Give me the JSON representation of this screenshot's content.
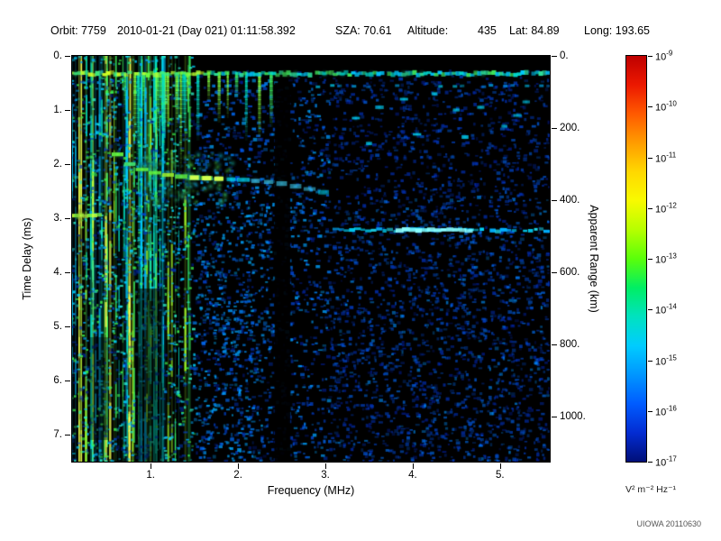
{
  "header": {
    "orbit": "Orbit: 7759",
    "datetime": "2010-01-21 (Day 021) 01:11:58.392",
    "sza": "SZA: 70.61",
    "altitude_label": "Altitude:",
    "altitude_value": "435",
    "lat": "Lat: 84.89",
    "long": "Long: 193.65"
  },
  "footer": {
    "credit": "UIOWA 20110630"
  },
  "chart_data": {
    "type": "heatmap",
    "title": "",
    "xlabel": "Frequency (MHz)",
    "ylabel_left": "Time Delay (ms)",
    "ylabel_right": "Apparent Range (km)",
    "xlim": [
      0.1,
      5.57
    ],
    "ylim_ms": [
      0,
      7.5
    ],
    "ylim_km": [
      0,
      1125
    ],
    "background": "#000000",
    "x_ticks": [
      {
        "v": 1,
        "label": "1."
      },
      {
        "v": 2,
        "label": "2."
      },
      {
        "v": 3,
        "label": "3."
      },
      {
        "v": 4,
        "label": "4."
      },
      {
        "v": 5,
        "label": "5."
      }
    ],
    "y_ticks_ms": [
      {
        "v": 0,
        "label": "0."
      },
      {
        "v": 1,
        "label": "1."
      },
      {
        "v": 2,
        "label": "2."
      },
      {
        "v": 3,
        "label": "3."
      },
      {
        "v": 4,
        "label": "4."
      },
      {
        "v": 5,
        "label": "5."
      },
      {
        "v": 6,
        "label": "6."
      },
      {
        "v": 7,
        "label": "7."
      }
    ],
    "y_ticks_km": [
      {
        "v": 0,
        "label": "0."
      },
      {
        "v": 200,
        "label": "200."
      },
      {
        "v": 400,
        "label": "400."
      },
      {
        "v": 600,
        "label": "600."
      },
      {
        "v": 800,
        "label": "800."
      },
      {
        "v": 1000,
        "label": "1000."
      }
    ],
    "colorbar": {
      "unit_label": "V² m⁻² Hz⁻¹",
      "tick_base": "10",
      "tick_exponents": [
        "-9",
        "-10",
        "-11",
        "-12",
        "-13",
        "-14",
        "-15",
        "-16",
        "-17"
      ],
      "gradient": [
        "#be0000",
        "#ec1800",
        "#ff5a00",
        "#ff9c00",
        "#ffd800",
        "#f8fa00",
        "#b6ff00",
        "#5aff0a",
        "#00ee64",
        "#00e2c0",
        "#00ccff",
        "#0096ff",
        "#005cff",
        "#032cd2",
        "#000f78"
      ]
    },
    "render": {
      "seed": 7759,
      "noise_regions": [
        {
          "f": [
            0.1,
            5.57
          ],
          "t": [
            0.28,
            7.5
          ],
          "count": 2100,
          "colors": [
            "#001e96",
            "#0031b9",
            "#0044d8"
          ],
          "alpha": [
            0.25,
            0.75
          ],
          "size": [
            2,
            5
          ]
        },
        {
          "f": [
            1.5,
            3.05
          ],
          "t": [
            0.45,
            7.5
          ],
          "count": 950,
          "colors": [
            "#0046d8",
            "#0066ee",
            "#0085ff",
            "#00a2ff"
          ],
          "alpha": [
            0.3,
            0.85
          ],
          "size": [
            2,
            5
          ]
        },
        {
          "f": [
            3.05,
            5.57
          ],
          "t": [
            0.45,
            7.5
          ],
          "count": 1150,
          "colors": [
            "#0030b8",
            "#004ad8",
            "#0062ee"
          ],
          "alpha": [
            0.25,
            0.7
          ],
          "size": [
            2,
            5
          ]
        },
        {
          "f": [
            0.1,
            1.5
          ],
          "t": [
            0.0,
            7.5
          ],
          "count": 1400,
          "colors": [
            "#00a8ff",
            "#00d0ff",
            "#2ae8c4",
            "#3cf04c"
          ],
          "alpha": [
            0.3,
            0.9
          ],
          "size": [
            2,
            4
          ]
        },
        {
          "f": [
            3.1,
            5.57
          ],
          "t": [
            2.6,
            7.5
          ],
          "count": 520,
          "colors": [
            "#0054e2",
            "#0072f8",
            "#0092ff"
          ],
          "alpha": [
            0.25,
            0.65
          ],
          "size": [
            2,
            5
          ]
        },
        {
          "f": [
            1.5,
            2.4
          ],
          "t": [
            2.2,
            7.5
          ],
          "count": 300,
          "colors": [
            "#0066ee",
            "#0090ff",
            "#00b4ff"
          ],
          "alpha": [
            0.3,
            0.8
          ],
          "size": [
            2,
            4
          ]
        }
      ],
      "stripes": {
        "f": [
          0.1,
          1.45
        ],
        "count": 58,
        "colors": [
          "#00c8ff",
          "#00e8cc",
          "#3cf060",
          "#9cf028"
        ],
        "bright_f": [
          0.1,
          0.8
        ],
        "bright_count": 7,
        "bright_colors": [
          "#c8ff3c",
          "#f0ff50"
        ]
      },
      "dark_patches": [
        {
          "f": [
            0.82,
            1.14
          ],
          "t": [
            4.3,
            7.5
          ],
          "alpha": 0.55
        },
        {
          "f": [
            0.3,
            0.52
          ],
          "t": [
            5.2,
            7.1
          ],
          "alpha": 0.4
        }
      ],
      "black_column": {
        "f": [
          2.42,
          2.6
        ],
        "t": [
          0.5,
          7.5
        ],
        "alpha": 0.93
      },
      "surface_line": {
        "t": 0.33,
        "gap_prob": 0.05,
        "split_f": 1.7,
        "left_colors": [
          "#b8ff30",
          "#74ff40",
          "#d2ff24",
          "#40f080"
        ],
        "right_colors": [
          "#30e8a0",
          "#00dcd2",
          "#44f060",
          "#00c8ff"
        ]
      },
      "sub_line": {
        "t": 0.56,
        "f": [
          2.75,
          5.57
        ],
        "colors": [
          "#00b4ff",
          "#00d8ff",
          "#0092ff"
        ]
      },
      "hanging_spikes": {
        "f": [
          0.7,
          2.35
        ],
        "count": 15,
        "t_top": 0.35,
        "len_ms": [
          0.35,
          1.4
        ],
        "colors": [
          "#3cf060",
          "#00e0c0",
          "#84ff40"
        ],
        "cluster_f": [
          0.85,
          1.4
        ],
        "cluster_count": 9,
        "cluster_len_ms": [
          0.9,
          2.0
        ]
      },
      "iono_trace": {
        "points": [
          [
            0.62,
            1.82
          ],
          [
            0.76,
            2.0
          ],
          [
            0.9,
            2.1
          ],
          [
            1.05,
            2.16
          ],
          [
            1.2,
            2.2
          ],
          [
            1.35,
            2.23
          ],
          [
            1.5,
            2.25
          ],
          [
            1.64,
            2.26
          ],
          [
            1.78,
            2.27
          ],
          [
            1.92,
            2.28
          ],
          [
            2.06,
            2.29
          ],
          [
            2.2,
            2.31
          ],
          [
            2.35,
            2.33
          ],
          [
            2.5,
            2.36
          ],
          [
            2.66,
            2.41
          ],
          [
            2.82,
            2.46
          ],
          [
            2.98,
            2.52
          ]
        ],
        "head_colors": [
          "#66ff44",
          "#a8ff33",
          "#44f078"
        ],
        "tail_colors": [
          "#00e4ff",
          "#40d8ff"
        ],
        "knot_color": "#d8ff50"
      },
      "iono_cloud": {
        "f": [
          0.85,
          1.95
        ],
        "t": [
          1.8,
          2.75
        ],
        "count": 150,
        "colors": [
          "#00c8ff",
          "#30e8a0",
          "#50f050"
        ]
      },
      "second_echo": {
        "t": 3.22,
        "f": [
          3.12,
          5.57
        ],
        "colors": [
          "#00d8ff",
          "#20e8ff",
          "#00b0ff"
        ],
        "bright_color": "#8cffff",
        "bright_f": [
          3.85,
          4.7
        ],
        "lead_f": 2.95
      },
      "left_dash": {
        "t": 2.95,
        "f": [
          0.1,
          0.45
        ],
        "colors": [
          "#c8ff3c",
          "#84ff40",
          "#e8ff28"
        ]
      },
      "sparse_blobs": [
        [
          3.35,
          1.15
        ],
        [
          3.62,
          0.95
        ],
        [
          3.9,
          0.8
        ],
        [
          4.25,
          0.7
        ],
        [
          4.5,
          1.0
        ],
        [
          4.78,
          0.95
        ],
        [
          5.05,
          1.3
        ],
        [
          5.3,
          0.85
        ],
        [
          4.05,
          1.45
        ],
        [
          3.5,
          1.62
        ],
        [
          4.6,
          1.5
        ],
        [
          5.2,
          1.1
        ]
      ]
    }
  }
}
